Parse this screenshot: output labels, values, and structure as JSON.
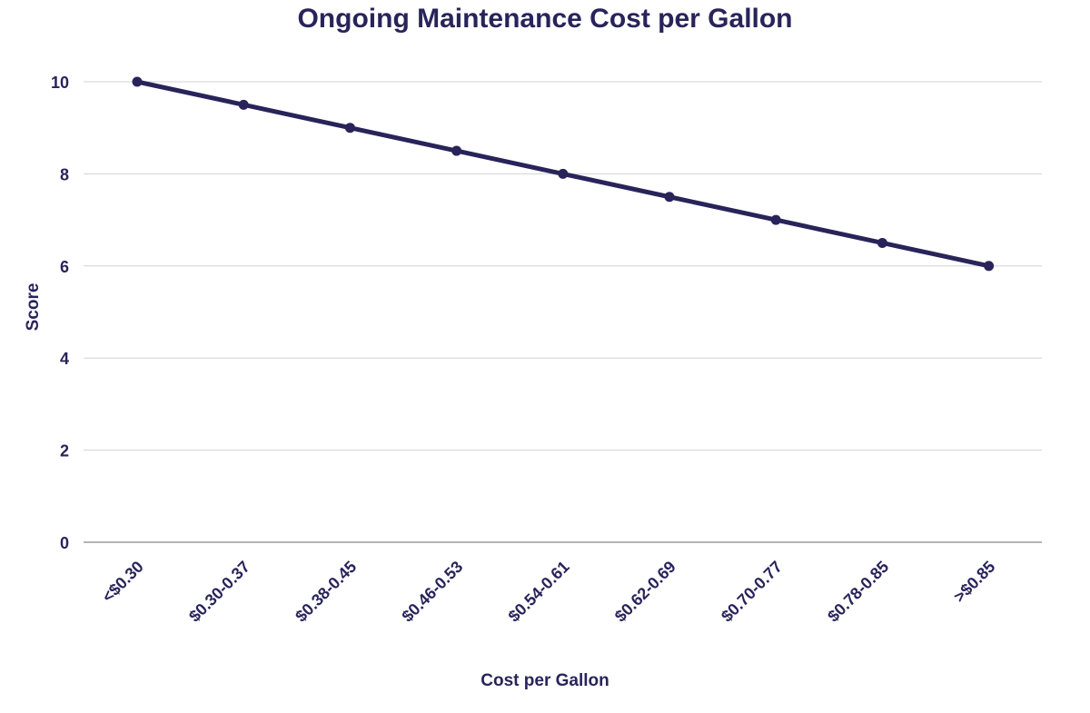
{
  "chart_data": {
    "type": "line",
    "title": "Ongoing Maintenance Cost per Gallon",
    "xlabel": "Cost per Gallon",
    "ylabel": "Score",
    "categories": [
      "<$0.30",
      "$0.30-0.37",
      "$0.38-0.45",
      "$0.46-0.53",
      "$0.54-0.61",
      "$0.62-0.69",
      "$0.70-0.77",
      "$0.78-0.85",
      ">$0.85"
    ],
    "series": [
      {
        "values": [
          10,
          9.5,
          9,
          8.5,
          8,
          7.5,
          7,
          6.5,
          6
        ]
      }
    ],
    "ylim": [
      0,
      10
    ],
    "yticks": [
      0,
      2,
      4,
      6,
      8,
      10
    ],
    "grid": true,
    "legend": "none",
    "colors": {
      "series": "#28245a",
      "text": "#28245a",
      "grid": "#d3d3d3",
      "axis": "#888888"
    }
  }
}
